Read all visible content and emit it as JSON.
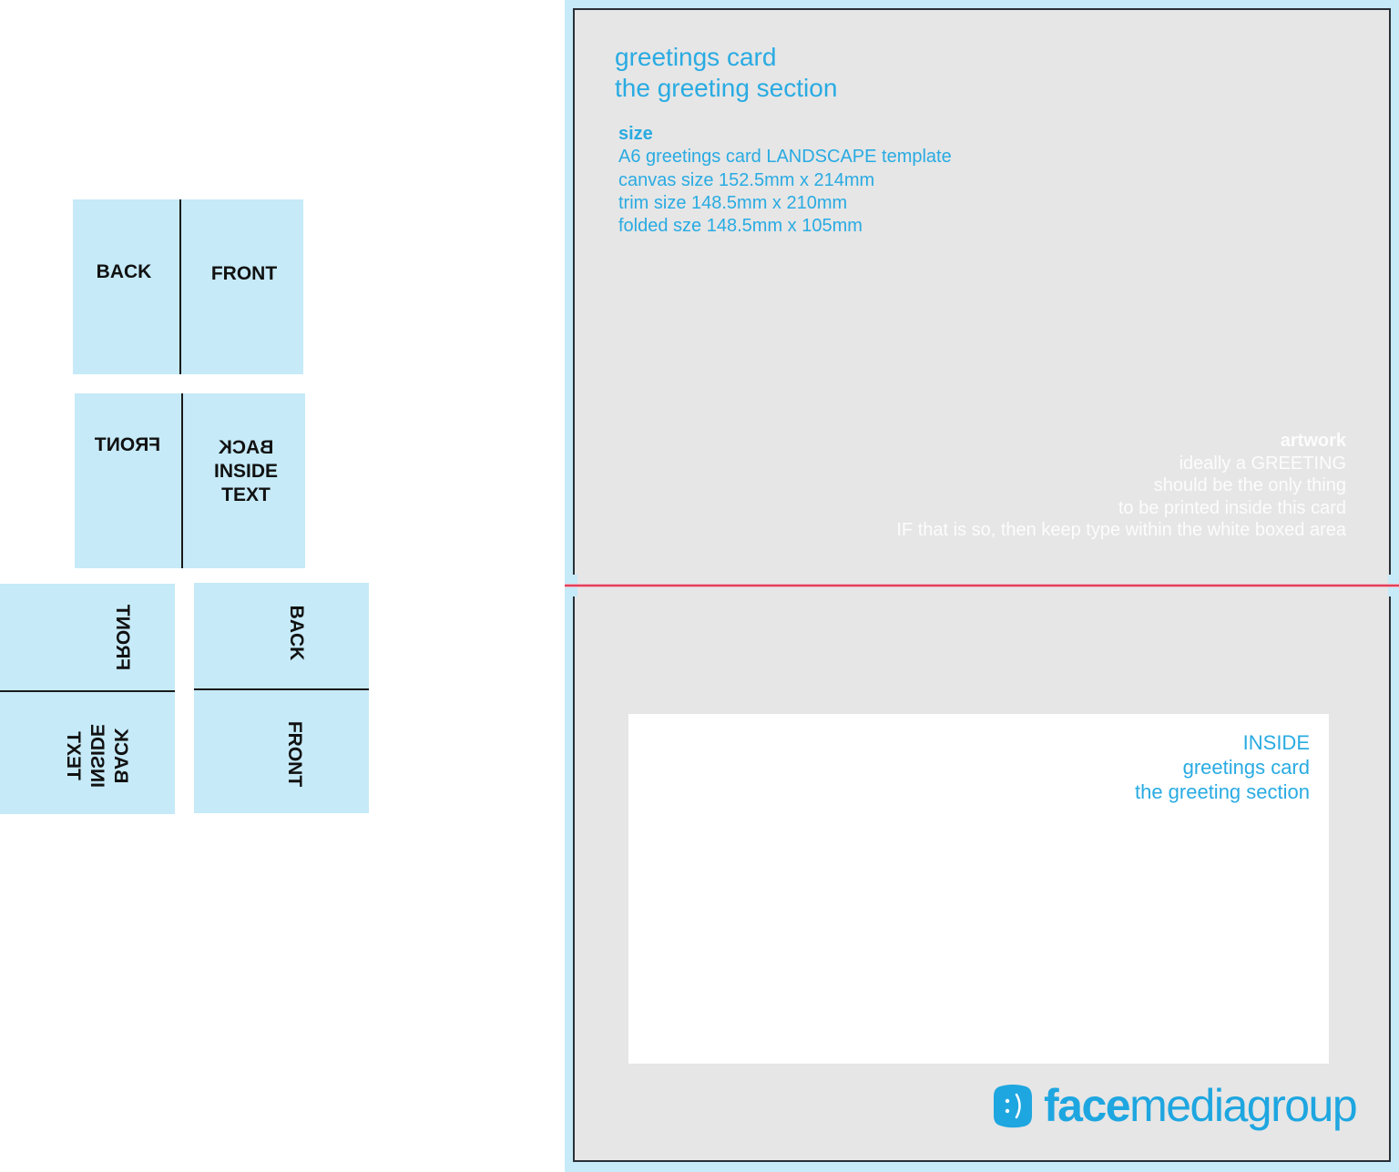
{
  "fold_diagrams": {
    "step1": {
      "left": "BACK",
      "right": "FRONT"
    },
    "step2": {
      "left": "FRONT",
      "right": [
        "BACK",
        "INSIDE",
        "TEXT"
      ]
    },
    "step3_left": {
      "top": "FRONT",
      "bottom": [
        "BACK",
        "INSIDE",
        "TEXT"
      ]
    },
    "step3_right": {
      "top": "BACK",
      "bottom": "FRONT"
    }
  },
  "template": {
    "title_lines": [
      "greetings card",
      "the greeting section"
    ],
    "size_heading": "size",
    "size_lines": [
      "A6 greetings card LANDSCAPE template",
      "canvas size 152.5mm x 214mm",
      "trim size 148.5mm x 210mm",
      "folded sze 148.5mm x 105mm"
    ],
    "artwork_heading": "artwork",
    "artwork_lines": [
      "ideally a GREETING",
      "should be the only thing",
      "to be printed inside this card",
      "IF that is so, then keep type within the white boxed area"
    ],
    "inside_lines": [
      "INSIDE",
      "greetings card",
      "the greeting section"
    ],
    "logo": {
      "bold": "face",
      "regular": "mediagroup"
    }
  },
  "colors": {
    "accent_blue": "#29abe2",
    "bleed_blue": "#c6eaf8",
    "trim_gray": "#e6e6e6",
    "fold_line_red": "#e0405a"
  }
}
